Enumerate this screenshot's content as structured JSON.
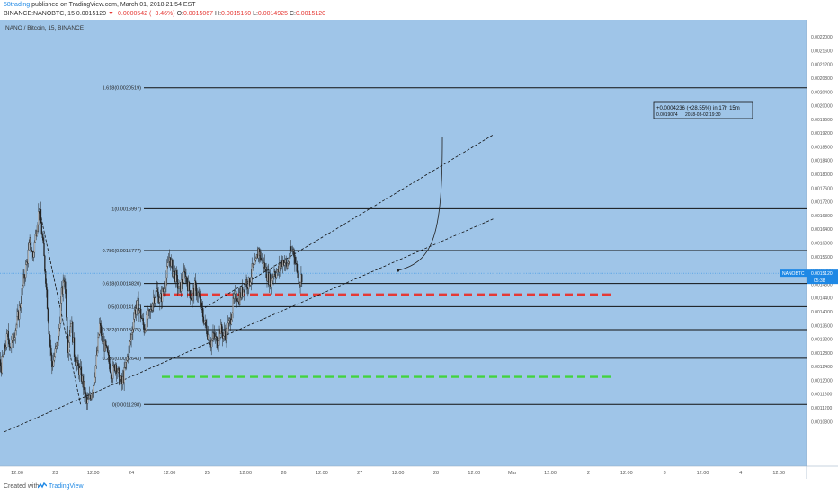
{
  "header": {
    "author": "58trading",
    "published": "published on TradingView.com, March 01, 2018 21:54 EST",
    "symbol": "BINANCE:NANOBTC, 15",
    "price": "0.0015120",
    "change": "▼−0.0000542 (−3.46%)",
    "o_label": "O:",
    "o_value": "0.0015067",
    "h_label": "H:",
    "h_value": "0.0015160",
    "l_label": "L:",
    "l_value": "0.0014925",
    "c_label": "C:",
    "c_value": "0.0015120"
  },
  "chart_title": "NANO / Bitcoin, 15, BINANCE",
  "footer": {
    "created": "Created with",
    "brand": "TradingView"
  },
  "chart_data": {
    "type": "candlestick",
    "time_unit": "hours since Feb 22 12:00",
    "x_ticks": [
      "12:00",
      "23",
      "12:00",
      "24",
      "12:00",
      "25",
      "12:00",
      "26",
      "12:00",
      "27",
      "12:00",
      "28",
      "12:00",
      "Mar",
      "12:00",
      "2",
      "12:00",
      "3",
      "12:00",
      "4",
      "12:00"
    ],
    "y_range": [
      0.00095,
      0.00225
    ],
    "y_ticks": [
      "0.0010800",
      "0.0011200",
      "0.0011600",
      "0.0012000",
      "0.0012400",
      "0.0012800",
      "0.0013200",
      "0.0013600",
      "0.0014000",
      "0.0014400",
      "0.0014800",
      "0.0015200",
      "0.0015600",
      "0.0016000",
      "0.0016400",
      "0.0016800",
      "0.0017200",
      "0.0017600",
      "0.0018000",
      "0.0018400",
      "0.0018800",
      "0.0019200",
      "0.0019600",
      "0.0020000",
      "0.0020400",
      "0.0020800",
      "0.0021200",
      "0.0021600",
      "0.0022000"
    ],
    "current_price_label": "NANOBTC",
    "current_price": "0.0015120",
    "countdown": "05:38",
    "fibonacci_levels": [
      {
        "label": "1.618(0.0020519)",
        "value": 0.0020519
      },
      {
        "label": "1(0.0016997)",
        "value": 0.0016997
      },
      {
        "label": "0.786(0.0015777)",
        "value": 0.0015777
      },
      {
        "label": "0.618(0.0014820)",
        "value": 0.001482
      },
      {
        "label": "0.5(0.0014147)",
        "value": 0.0014147
      },
      {
        "label": "0.382(0.0013475)",
        "value": 0.0013475
      },
      {
        "label": "0.236(0.0012643)",
        "value": 0.0012643
      },
      {
        "label": "0(0.0011298)",
        "value": 0.0011298
      }
    ],
    "horizontal_lines": [
      {
        "color": "#e53935",
        "value": 0.00145,
        "style": "dashed"
      },
      {
        "color": "#43d33f",
        "value": 0.00121,
        "style": "dashed"
      }
    ],
    "trend_lines": [
      {
        "from": [
          58,
          0.001405
        ],
        "to": [
          150,
          0.001915
        ],
        "style": "dashed"
      },
      {
        "from": [
          -4,
          0.00105
        ],
        "to": [
          150,
          0.00167
        ],
        "style": "dashed"
      },
      {
        "from": [
          7,
          0.0017
        ],
        "to": [
          20,
          0.00113
        ],
        "style": "dashed"
      }
    ],
    "projection": {
      "from": [
        120,
        0.00152
      ],
      "to": [
        134,
        0.0019074
      ],
      "label": "+0.0004236 (+28.55%) in 17h 15m",
      "price": "0.0019074",
      "date": "2018-03-02  19:30"
    },
    "price_path": [
      [
        -21,
        0.001
      ],
      [
        -18,
        0.00103
      ],
      [
        -16,
        0.00101
      ],
      [
        -14,
        0.00108
      ],
      [
        -12,
        0.00113
      ],
      [
        -10,
        0.00112
      ],
      [
        -8,
        0.00118
      ],
      [
        -6,
        0.00126
      ],
      [
        -5,
        0.00124
      ],
      [
        -3,
        0.00133
      ],
      [
        -2,
        0.0013
      ],
      [
        0,
        0.00137
      ],
      [
        1,
        0.00142
      ],
      [
        2,
        0.00149
      ],
      [
        3,
        0.00154
      ],
      [
        4,
        0.0016
      ],
      [
        5,
        0.00156
      ],
      [
        6,
        0.00164
      ],
      [
        7,
        0.0017
      ],
      [
        8,
        0.00161
      ],
      [
        9,
        0.0015
      ],
      [
        10,
        0.00135
      ],
      [
        11,
        0.00124
      ],
      [
        12,
        0.00128
      ],
      [
        13,
        0.00132
      ],
      [
        14,
        0.00145
      ],
      [
        15,
        0.0015
      ],
      [
        16,
        0.0013
      ],
      [
        17,
        0.00138
      ],
      [
        18,
        0.00128
      ],
      [
        19,
        0.00124
      ],
      [
        20,
        0.00122
      ],
      [
        21,
        0.00118
      ],
      [
        22,
        0.00113
      ],
      [
        23,
        0.00115
      ],
      [
        24,
        0.00119
      ],
      [
        25,
        0.00126
      ],
      [
        26,
        0.00136
      ],
      [
        27,
        0.00131
      ],
      [
        28,
        0.00129
      ],
      [
        29,
        0.00125
      ],
      [
        30,
        0.00122
      ],
      [
        31,
        0.00125
      ],
      [
        32,
        0.00121
      ],
      [
        33,
        0.00119
      ],
      [
        34,
        0.00123
      ],
      [
        35,
        0.00128
      ],
      [
        36,
        0.00133
      ],
      [
        37,
        0.0014
      ],
      [
        38,
        0.00142
      ],
      [
        39,
        0.00139
      ],
      [
        40,
        0.00135
      ],
      [
        41,
        0.00138
      ],
      [
        42,
        0.0014
      ],
      [
        43,
        0.00144
      ],
      [
        44,
        0.00146
      ],
      [
        45,
        0.00143
      ],
      [
        46,
        0.00146
      ],
      [
        47,
        0.0015
      ],
      [
        48,
        0.00156
      ],
      [
        49,
        0.00152
      ],
      [
        50,
        0.0015
      ],
      [
        51,
        0.00146
      ],
      [
        52,
        0.00149
      ],
      [
        53,
        0.00151
      ],
      [
        54,
        0.00147
      ],
      [
        55,
        0.00144
      ],
      [
        56,
        0.00147
      ],
      [
        57,
        0.00145
      ],
      [
        58,
        0.00141
      ],
      [
        59,
        0.00137
      ],
      [
        60,
        0.00134
      ],
      [
        61,
        0.00131
      ],
      [
        62,
        0.00133
      ],
      [
        63,
        0.00131
      ],
      [
        64,
        0.00135
      ],
      [
        65,
        0.00133
      ],
      [
        66,
        0.00134
      ],
      [
        67,
        0.00137
      ],
      [
        68,
        0.00142
      ],
      [
        69,
        0.00145
      ],
      [
        70,
        0.00144
      ],
      [
        71,
        0.00146
      ],
      [
        72,
        0.00149
      ],
      [
        73,
        0.00148
      ],
      [
        74,
        0.00152
      ],
      [
        75,
        0.00153
      ],
      [
        76,
        0.00158
      ],
      [
        77,
        0.00155
      ],
      [
        78,
        0.00153
      ],
      [
        79,
        0.0015
      ],
      [
        80,
        0.00149
      ],
      [
        81,
        0.00152
      ],
      [
        82,
        0.00151
      ],
      [
        83,
        0.00154
      ],
      [
        84,
        0.00155
      ],
      [
        85,
        0.00153
      ],
      [
        86,
        0.00157
      ],
      [
        87,
        0.00158
      ],
      [
        88,
        0.00153
      ],
      [
        89,
        0.00149
      ],
      [
        90,
        0.00151
      ]
    ]
  }
}
